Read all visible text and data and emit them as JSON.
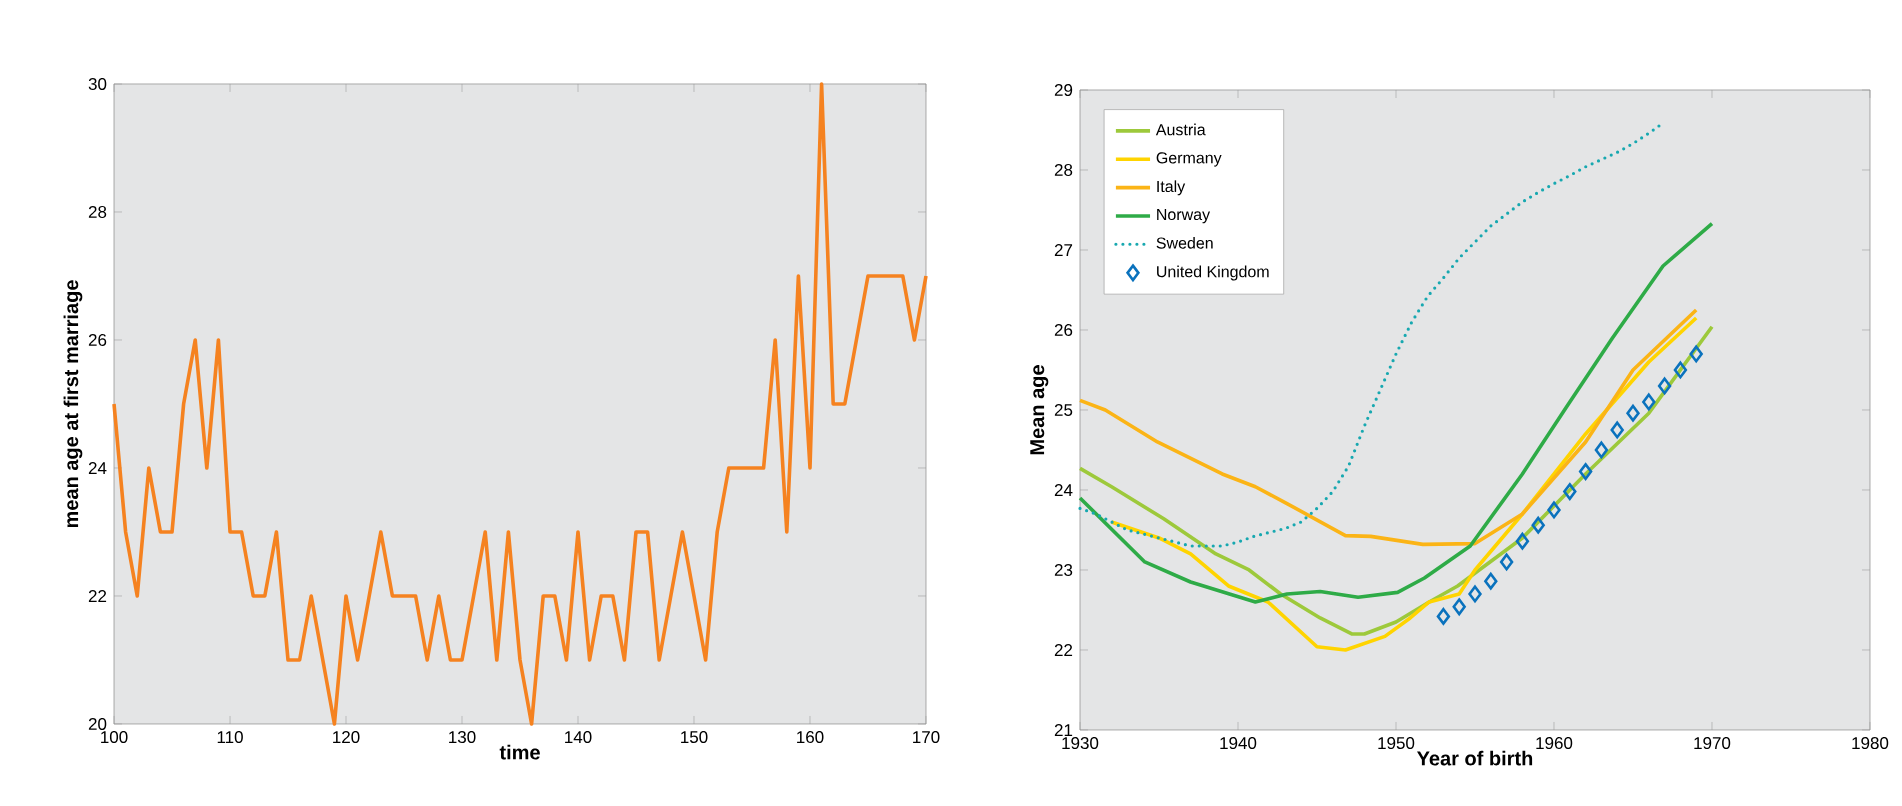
{
  "chart_data": [
    {
      "type": "line",
      "xlabel": "time",
      "ylabel": "mean age at first marriage",
      "xlim": [
        100,
        170
      ],
      "ylim": [
        20,
        30
      ],
      "xticks": [
        100,
        110,
        120,
        130,
        140,
        150,
        160,
        170
      ],
      "yticks": [
        20,
        22,
        24,
        26,
        28,
        30
      ],
      "marker": "none",
      "line_style": "solid",
      "series": [
        {
          "color": "#f58220",
          "x": [
            100,
            101,
            102,
            103,
            104,
            105,
            106,
            107,
            108,
            109,
            110,
            111,
            112,
            113,
            114,
            115,
            116,
            117,
            118,
            119,
            120,
            121,
            122,
            123,
            124,
            125,
            126,
            127,
            128,
            129,
            130,
            131,
            132,
            133,
            134,
            135,
            136,
            137,
            138,
            139,
            140,
            141,
            142,
            143,
            144,
            145,
            146,
            147,
            148,
            149,
            150,
            151,
            152,
            153,
            154,
            155,
            156,
            157,
            158,
            159,
            160,
            161,
            162,
            163,
            164,
            165,
            166,
            167,
            168,
            169,
            170
          ],
          "values": [
            25,
            23,
            22,
            24,
            23,
            23,
            25,
            26,
            24,
            26,
            23,
            23,
            22,
            22,
            23,
            21,
            21,
            22,
            21,
            20,
            22,
            21,
            22,
            23,
            22,
            22,
            22,
            21,
            22,
            21,
            21,
            22,
            23,
            21,
            23,
            21,
            20,
            22,
            22,
            21,
            23,
            21,
            22,
            22,
            21,
            23,
            23,
            21,
            22,
            23,
            22,
            21,
            23,
            24,
            24,
            24,
            24,
            26,
            23,
            27,
            24,
            30,
            25,
            25,
            26,
            27,
            27,
            27,
            27,
            26,
            27
          ]
        }
      ]
    },
    {
      "type": "line",
      "xlabel": "Year of birth",
      "ylabel": "Mean age",
      "xlim": [
        1930,
        1980
      ],
      "ylim": [
        21,
        29
      ],
      "xticks": [
        1930,
        1940,
        1950,
        1960,
        1970,
        1980
      ],
      "yticks": [
        21,
        22,
        23,
        24,
        25,
        26,
        27,
        28,
        29
      ],
      "legend": "top left",
      "series": [
        {
          "name": "Austria",
          "color": "#9dc93b",
          "marker": "none",
          "line_style": "solid",
          "x": [
            1930,
            1932,
            1935.3,
            1938.6,
            1940.7,
            1942.7,
            1945.2,
            1947.2,
            1948,
            1950,
            1952.1,
            1953.9,
            1958,
            1962,
            1966,
            1970
          ],
          "values": [
            24.27,
            24.04,
            23.64,
            23.2,
            23.0,
            22.7,
            22.4,
            22.2,
            22.2,
            22.35,
            22.6,
            22.8,
            23.4,
            24.2,
            24.96,
            26.04
          ]
        },
        {
          "name": "Germany",
          "color": "#ffd400",
          "marker": "none",
          "line_style": "solid",
          "x": [
            1932,
            1935,
            1937,
            1939.4,
            1941.9,
            1945,
            1946.8,
            1949.3,
            1950.9,
            1952.1,
            1954,
            1955,
            1958,
            1962,
            1966,
            1969
          ],
          "values": [
            23.6,
            23.4,
            23.2,
            22.8,
            22.6,
            22.04,
            22.0,
            22.17,
            22.4,
            22.6,
            22.7,
            23.0,
            23.7,
            24.7,
            25.6,
            26.15
          ]
        },
        {
          "name": "Italy",
          "color": "#fbb416",
          "marker": "none",
          "line_style": "solid",
          "x": [
            1930,
            1931.6,
            1934.9,
            1939,
            1941.1,
            1943.1,
            1946.8,
            1948.4,
            1951.7,
            1955,
            1958,
            1962,
            1965,
            1969
          ],
          "values": [
            25.12,
            25.0,
            24.6,
            24.2,
            24.04,
            23.83,
            23.43,
            23.42,
            23.32,
            23.33,
            23.7,
            24.6,
            25.5,
            26.25
          ]
        },
        {
          "name": "Norway",
          "color": "#2eab47",
          "marker": "none",
          "line_style": "solid",
          "x": [
            1930,
            1934.1,
            1937,
            1941.1,
            1943.1,
            1945.2,
            1947.6,
            1950.1,
            1951.8,
            1954.7,
            1958,
            1960.8,
            1963.7,
            1966.9,
            1970
          ],
          "values": [
            23.9,
            23.1,
            22.85,
            22.6,
            22.7,
            22.73,
            22.66,
            22.72,
            22.9,
            23.3,
            24.2,
            25.04,
            25.9,
            26.8,
            27.33
          ]
        },
        {
          "name": "Sweden",
          "color": "#17a8b0",
          "marker": "none",
          "line_style": "dotted",
          "x": [
            1930,
            1931,
            1932,
            1933,
            1934,
            1935,
            1936,
            1937,
            1938,
            1939,
            1940,
            1941,
            1942,
            1943,
            1944,
            1945,
            1946,
            1947,
            1948,
            1949,
            1950,
            1951,
            1952,
            1953,
            1954,
            1955,
            1956,
            1957,
            1958,
            1959,
            1960,
            1961,
            1962,
            1963,
            1964,
            1965,
            1966,
            1967
          ],
          "values": [
            23.77,
            23.7,
            23.6,
            23.5,
            23.45,
            23.4,
            23.35,
            23.3,
            23.3,
            23.3,
            23.35,
            23.42,
            23.47,
            23.52,
            23.6,
            23.77,
            23.98,
            24.3,
            24.8,
            25.25,
            25.7,
            26.1,
            26.42,
            26.65,
            26.9,
            27.1,
            27.3,
            27.45,
            27.6,
            27.72,
            27.83,
            27.93,
            28.04,
            28.13,
            28.22,
            28.33,
            28.46,
            28.6
          ]
        },
        {
          "name": "United Kingdom",
          "color": "#0a72bd",
          "type": "scatter",
          "marker": "diamond",
          "x": [
            1953,
            1954,
            1955,
            1956,
            1957,
            1958,
            1959,
            1960,
            1961,
            1962,
            1963,
            1964,
            1965,
            1966,
            1967,
            1968,
            1969
          ],
          "values": [
            22.42,
            22.54,
            22.7,
            22.86,
            23.1,
            23.36,
            23.56,
            23.75,
            23.98,
            24.23,
            24.5,
            24.75,
            24.96,
            25.1,
            25.3,
            25.5,
            25.7
          ]
        }
      ]
    }
  ]
}
